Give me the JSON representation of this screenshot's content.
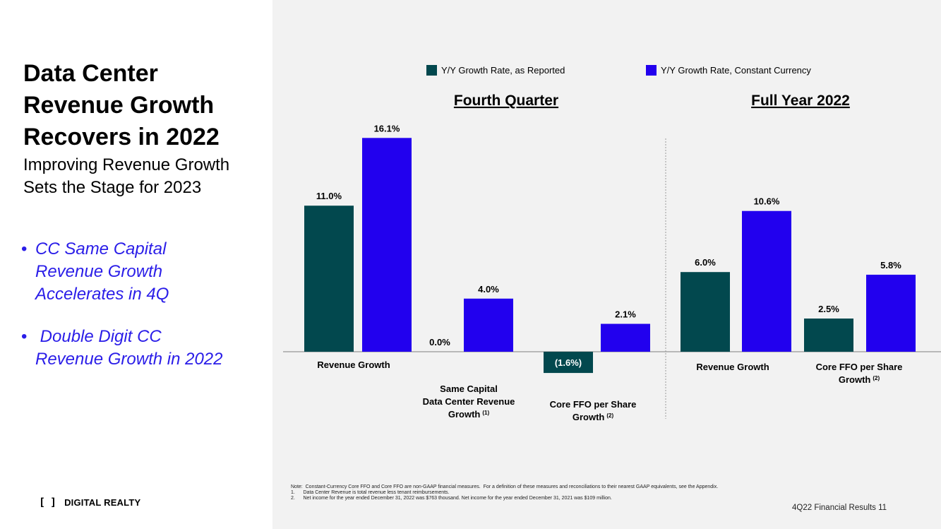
{
  "slide": {
    "title_lines": [
      "Data Center",
      "Revenue Growth",
      "Recovers in 2022"
    ],
    "subtitle_lines": [
      "Improving Revenue Growth",
      "Sets the Stage for 2023"
    ],
    "bullets": [
      {
        "lines": [
          "CC Same Capital",
          "Revenue Growth",
          "Accelerates in 4Q"
        ]
      },
      {
        "lines": [
          " Double Digit CC",
          "Revenue Growth in 2022"
        ]
      }
    ],
    "logo": {
      "mark": "[ ]",
      "text": "DIGITAL REALTY"
    },
    "footnotes": [
      "Note:  Constant-Currency Core FFO and Core FFO are non-GAAP financial measures.  For a definition of these measures and reconciliations to their nearest GAAP equivalents, see the Appendix.",
      "1.      Data Center Revenue is total revenue less tenant reimbursements.",
      "2.      Net income for the year ended December 31, 2022 was $763 thousand. Net income for the year ended December 31, 2021 was $109 million."
    ],
    "page_label": "4Q22 Financial Results 11"
  },
  "colors": {
    "reported": "#02484e",
    "constant_currency": "#2200ee",
    "axis": "#7f7f7f",
    "panel": "#f2f2f2"
  },
  "chart_data": {
    "type": "bar",
    "unit": "%",
    "legend_position": "top",
    "series": [
      {
        "name": "Y/Y Growth Rate, as Reported",
        "key": "reported"
      },
      {
        "name": "Y/Y Growth Rate, Constant Currency",
        "key": "constant_currency"
      }
    ],
    "panels": [
      {
        "title": "Fourth Quarter",
        "groups": [
          {
            "label_lines": [
              "Revenue Growth"
            ],
            "superscript": "",
            "values": [
              11.0,
              16.1
            ],
            "value_labels": [
              "11.0%",
              "16.1%"
            ]
          },
          {
            "label_lines": [
              "Same Capital",
              "Data Center Revenue",
              "Growth"
            ],
            "superscript": "(1)",
            "values": [
              0.0,
              4.0
            ],
            "value_labels": [
              "0.0%",
              "4.0%"
            ]
          },
          {
            "label_lines": [
              "Core FFO per Share",
              "Growth"
            ],
            "superscript": "(2)",
            "values": [
              -1.6,
              2.1
            ],
            "value_labels": [
              "(1.6%)",
              "2.1%"
            ]
          }
        ]
      },
      {
        "title": "Full Year 2022",
        "groups": [
          {
            "label_lines": [
              "Revenue Growth"
            ],
            "superscript": "",
            "values": [
              6.0,
              10.6
            ],
            "value_labels": [
              "6.0%",
              "10.6%"
            ]
          },
          {
            "label_lines": [
              "Core FFO per Share",
              "Growth"
            ],
            "superscript": "(2)",
            "values": [
              2.5,
              5.8
            ],
            "value_labels": [
              "2.5%",
              "5.8%"
            ]
          }
        ]
      }
    ]
  }
}
